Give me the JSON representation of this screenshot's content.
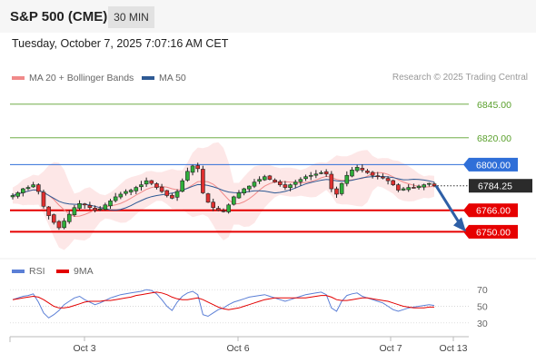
{
  "header": {
    "instrument": "S&P 500 (CME)",
    "timeframe": "30 MIN",
    "datetime": "Tuesday, October 7, 2025 7:07:16 AM CET"
  },
  "legend": {
    "bollinger": "MA 20 + Bollinger Bands",
    "ma50": "MA 50",
    "copyright": "Research © 2025 Trading Central",
    "rsi": "RSI",
    "rsi_ma": "9MA"
  },
  "colors": {
    "bollinger": "#f08a8a",
    "ma50": "#2e5a94",
    "rsi": "#5b7fd6",
    "rsi_ma": "#e30000",
    "green_levels": "#5aa02c",
    "resistance_blue": "#2f6fd8",
    "support_red": "#e60000",
    "price_box": "#2b2b2b",
    "forecast_arrow": "#2e5fa6"
  },
  "chart_data": [
    {
      "type": "candlestick",
      "ylim": [
        6730,
        6855
      ],
      "x_ticks": [
        "Oct 3",
        "Oct 6",
        "Oct 7",
        "Oct 13"
      ],
      "last_price": "6784.25",
      "levels": [
        {
          "label": "6845.00",
          "value": 6845,
          "style": "green"
        },
        {
          "label": "6820.00",
          "value": 6820,
          "style": "green"
        },
        {
          "label": "6800.00",
          "value": 6800,
          "style": "blue"
        },
        {
          "label": "6766.00",
          "value": 6766,
          "style": "red"
        },
        {
          "label": "6750.00",
          "value": 6750,
          "style": "red"
        }
      ],
      "close_path": [
        6777,
        6779,
        6782,
        6783,
        6785,
        6780,
        6769,
        6762,
        6757,
        6753,
        6758,
        6763,
        6768,
        6771,
        6770,
        6768,
        6766,
        6767,
        6770,
        6773,
        6776,
        6778,
        6780,
        6781,
        6783,
        6785,
        6788,
        6786,
        6783,
        6780,
        6777,
        6775,
        6780,
        6788,
        6795,
        6799,
        6797,
        6779,
        6772,
        6768,
        6766,
        6765,
        6770,
        6776,
        6779,
        6782,
        6784,
        6787,
        6789,
        6791,
        6789,
        6787,
        6785,
        6783,
        6785,
        6787,
        6789,
        6791,
        6792,
        6793,
        6794,
        6793,
        6782,
        6778,
        6786,
        6792,
        6796,
        6798,
        6796,
        6794,
        6792,
        6791,
        6790,
        6788,
        6785,
        6781,
        6782,
        6783,
        6783,
        6784,
        6785,
        6786,
        6784.25
      ],
      "forecast": {
        "from": 6784.25,
        "to": 6750
      }
    },
    {
      "type": "line",
      "title": "RSI",
      "ylim": [
        20,
        80
      ],
      "y_ticks": [
        70,
        50,
        30
      ],
      "rsi_series": [
        58,
        60,
        62,
        63,
        65,
        55,
        42,
        36,
        40,
        45,
        52,
        56,
        60,
        62,
        58,
        55,
        52,
        54,
        57,
        60,
        62,
        64,
        65,
        66,
        67,
        68,
        70,
        69,
        65,
        58,
        50,
        45,
        55,
        62,
        66,
        68,
        64,
        40,
        38,
        42,
        46,
        48,
        52,
        55,
        57,
        59,
        61,
        62,
        63,
        64,
        62,
        60,
        58,
        56,
        58,
        60,
        62,
        64,
        65,
        66,
        67,
        64,
        48,
        44,
        56,
        63,
        65,
        66,
        62,
        60,
        58,
        56,
        54,
        50,
        46,
        44,
        46,
        48,
        49,
        50,
        51,
        52,
        51
      ],
      "ma_series": [
        58,
        59,
        60,
        61,
        62,
        61,
        58,
        54,
        50,
        48,
        48,
        49,
        51,
        53,
        55,
        56,
        56,
        56,
        57,
        57,
        58,
        59,
        60,
        61,
        63,
        64,
        65,
        66,
        67,
        66,
        64,
        61,
        59,
        58,
        58,
        59,
        60,
        58,
        55,
        52,
        49,
        47,
        46,
        47,
        48,
        50,
        52,
        54,
        56,
        58,
        59,
        60,
        60,
        60,
        60,
        60,
        60,
        60,
        61,
        62,
        63,
        63,
        61,
        58,
        57,
        57,
        58,
        59,
        60,
        60,
        59,
        58,
        57,
        56,
        54,
        52,
        50,
        49,
        48,
        48,
        48,
        49,
        49
      ]
    }
  ]
}
